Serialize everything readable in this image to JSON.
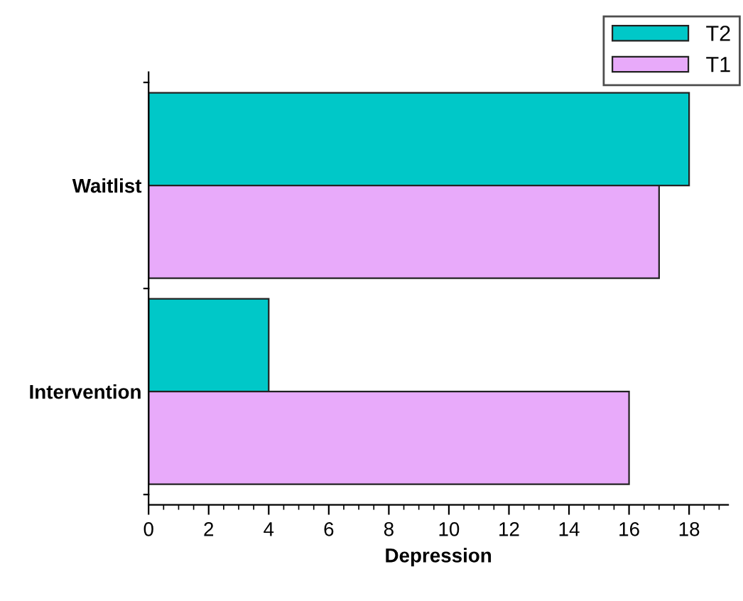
{
  "chart_data": {
    "type": "bar",
    "orientation": "horizontal",
    "xlabel": "Depression",
    "categories": [
      "Waitlist",
      "Intervention"
    ],
    "series": [
      {
        "name": "T2",
        "color": "#00c8c8",
        "values": [
          18,
          4
        ]
      },
      {
        "name": "T1",
        "color": "#e8aafa",
        "values": [
          17,
          16
        ]
      }
    ],
    "xlim": [
      0,
      19.3
    ],
    "xticks": [
      0,
      2,
      4,
      6,
      8,
      10,
      12,
      14,
      16,
      18
    ],
    "grid": false,
    "legend": "top right"
  }
}
